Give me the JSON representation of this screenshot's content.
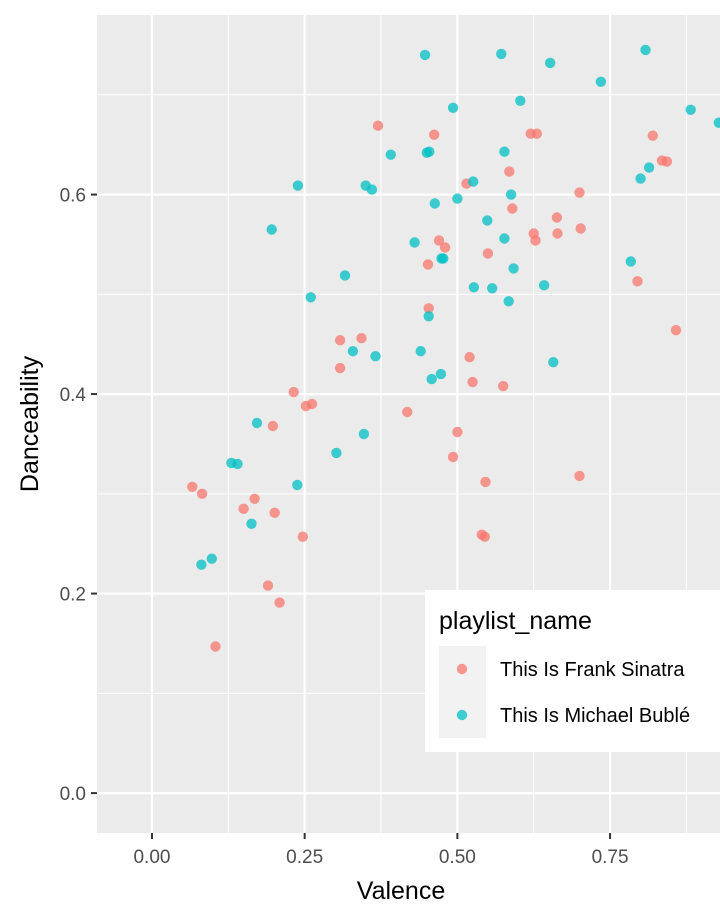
{
  "chart_data": {
    "type": "scatter",
    "xlabel": "Valence",
    "ylabel": "Danceability",
    "xlim": [
      -0.09,
      0.93
    ],
    "ylim": [
      -0.04,
      0.78
    ],
    "x_ticks": [
      0.0,
      0.25,
      0.5,
      0.75
    ],
    "x_tick_labels": [
      "0.00",
      "0.25",
      "0.50",
      "0.75"
    ],
    "y_ticks": [
      0.0,
      0.2,
      0.4,
      0.6
    ],
    "y_tick_labels": [
      "0.0",
      "0.2",
      "0.4",
      "0.6"
    ],
    "grid": true,
    "legend": {
      "title": "playlist_name",
      "placement": "right (inside, bottom-right)"
    },
    "series": [
      {
        "name": "This Is Frank Sinatra",
        "color": "#F8766D",
        "points": [
          [
            0.37,
            0.669
          ],
          [
            0.462,
            0.66
          ],
          [
            0.62,
            0.661
          ],
          [
            0.63,
            0.661
          ],
          [
            0.82,
            0.659
          ],
          [
            0.835,
            0.634
          ],
          [
            0.843,
            0.633
          ],
          [
            0.585,
            0.623
          ],
          [
            0.515,
            0.611
          ],
          [
            0.7,
            0.602
          ],
          [
            0.59,
            0.586
          ],
          [
            0.663,
            0.577
          ],
          [
            0.702,
            0.566
          ],
          [
            0.625,
            0.561
          ],
          [
            0.664,
            0.561
          ],
          [
            0.47,
            0.554
          ],
          [
            0.628,
            0.554
          ],
          [
            0.48,
            0.547
          ],
          [
            0.55,
            0.541
          ],
          [
            0.452,
            0.53
          ],
          [
            0.795,
            0.513
          ],
          [
            0.453,
            0.486
          ],
          [
            0.858,
            0.464
          ],
          [
            0.343,
            0.456
          ],
          [
            0.308,
            0.454
          ],
          [
            0.52,
            0.437
          ],
          [
            0.308,
            0.426
          ],
          [
            0.525,
            0.412
          ],
          [
            0.575,
            0.408
          ],
          [
            0.232,
            0.402
          ],
          [
            0.262,
            0.39
          ],
          [
            0.252,
            0.388
          ],
          [
            0.418,
            0.382
          ],
          [
            0.198,
            0.368
          ],
          [
            0.5,
            0.362
          ],
          [
            0.493,
            0.337
          ],
          [
            0.7,
            0.318
          ],
          [
            0.546,
            0.312
          ],
          [
            0.066,
            0.307
          ],
          [
            0.082,
            0.3
          ],
          [
            0.168,
            0.295
          ],
          [
            0.15,
            0.285
          ],
          [
            0.201,
            0.281
          ],
          [
            0.54,
            0.259
          ],
          [
            0.545,
            0.257
          ],
          [
            0.247,
            0.257
          ],
          [
            0.19,
            0.208
          ],
          [
            0.477,
            0.197
          ],
          [
            0.209,
            0.191
          ],
          [
            0.104,
            0.147
          ]
        ]
      },
      {
        "name": "This Is Michael Bublé",
        "color": "#00BFC4",
        "points": [
          [
            0.808,
            0.745
          ],
          [
            0.447,
            0.74
          ],
          [
            0.572,
            0.741
          ],
          [
            0.652,
            0.732
          ],
          [
            0.735,
            0.713
          ],
          [
            0.603,
            0.694
          ],
          [
            0.493,
            0.687
          ],
          [
            0.882,
            0.685
          ],
          [
            0.928,
            0.672
          ],
          [
            0.577,
            0.643
          ],
          [
            0.45,
            0.642
          ],
          [
            0.454,
            0.643
          ],
          [
            0.391,
            0.64
          ],
          [
            0.814,
            0.627
          ],
          [
            0.8,
            0.616
          ],
          [
            0.526,
            0.613
          ],
          [
            0.35,
            0.609
          ],
          [
            0.239,
            0.609
          ],
          [
            0.36,
            0.605
          ],
          [
            0.588,
            0.6
          ],
          [
            0.5,
            0.596
          ],
          [
            0.463,
            0.591
          ],
          [
            0.549,
            0.574
          ],
          [
            0.196,
            0.565
          ],
          [
            0.577,
            0.556
          ],
          [
            0.43,
            0.552
          ],
          [
            0.474,
            0.536
          ],
          [
            0.477,
            0.536
          ],
          [
            0.784,
            0.533
          ],
          [
            0.592,
            0.526
          ],
          [
            0.316,
            0.519
          ],
          [
            0.642,
            0.509
          ],
          [
            0.527,
            0.507
          ],
          [
            0.557,
            0.506
          ],
          [
            0.26,
            0.497
          ],
          [
            0.584,
            0.493
          ],
          [
            0.453,
            0.478
          ],
          [
            0.329,
            0.443
          ],
          [
            0.44,
            0.443
          ],
          [
            0.366,
            0.438
          ],
          [
            0.657,
            0.432
          ],
          [
            0.473,
            0.42
          ],
          [
            0.458,
            0.415
          ],
          [
            0.172,
            0.371
          ],
          [
            0.347,
            0.36
          ],
          [
            0.302,
            0.341
          ],
          [
            0.13,
            0.331
          ],
          [
            0.14,
            0.33
          ],
          [
            0.238,
            0.309
          ],
          [
            0.163,
            0.27
          ],
          [
            0.098,
            0.235
          ],
          [
            0.081,
            0.229
          ]
        ]
      }
    ]
  }
}
